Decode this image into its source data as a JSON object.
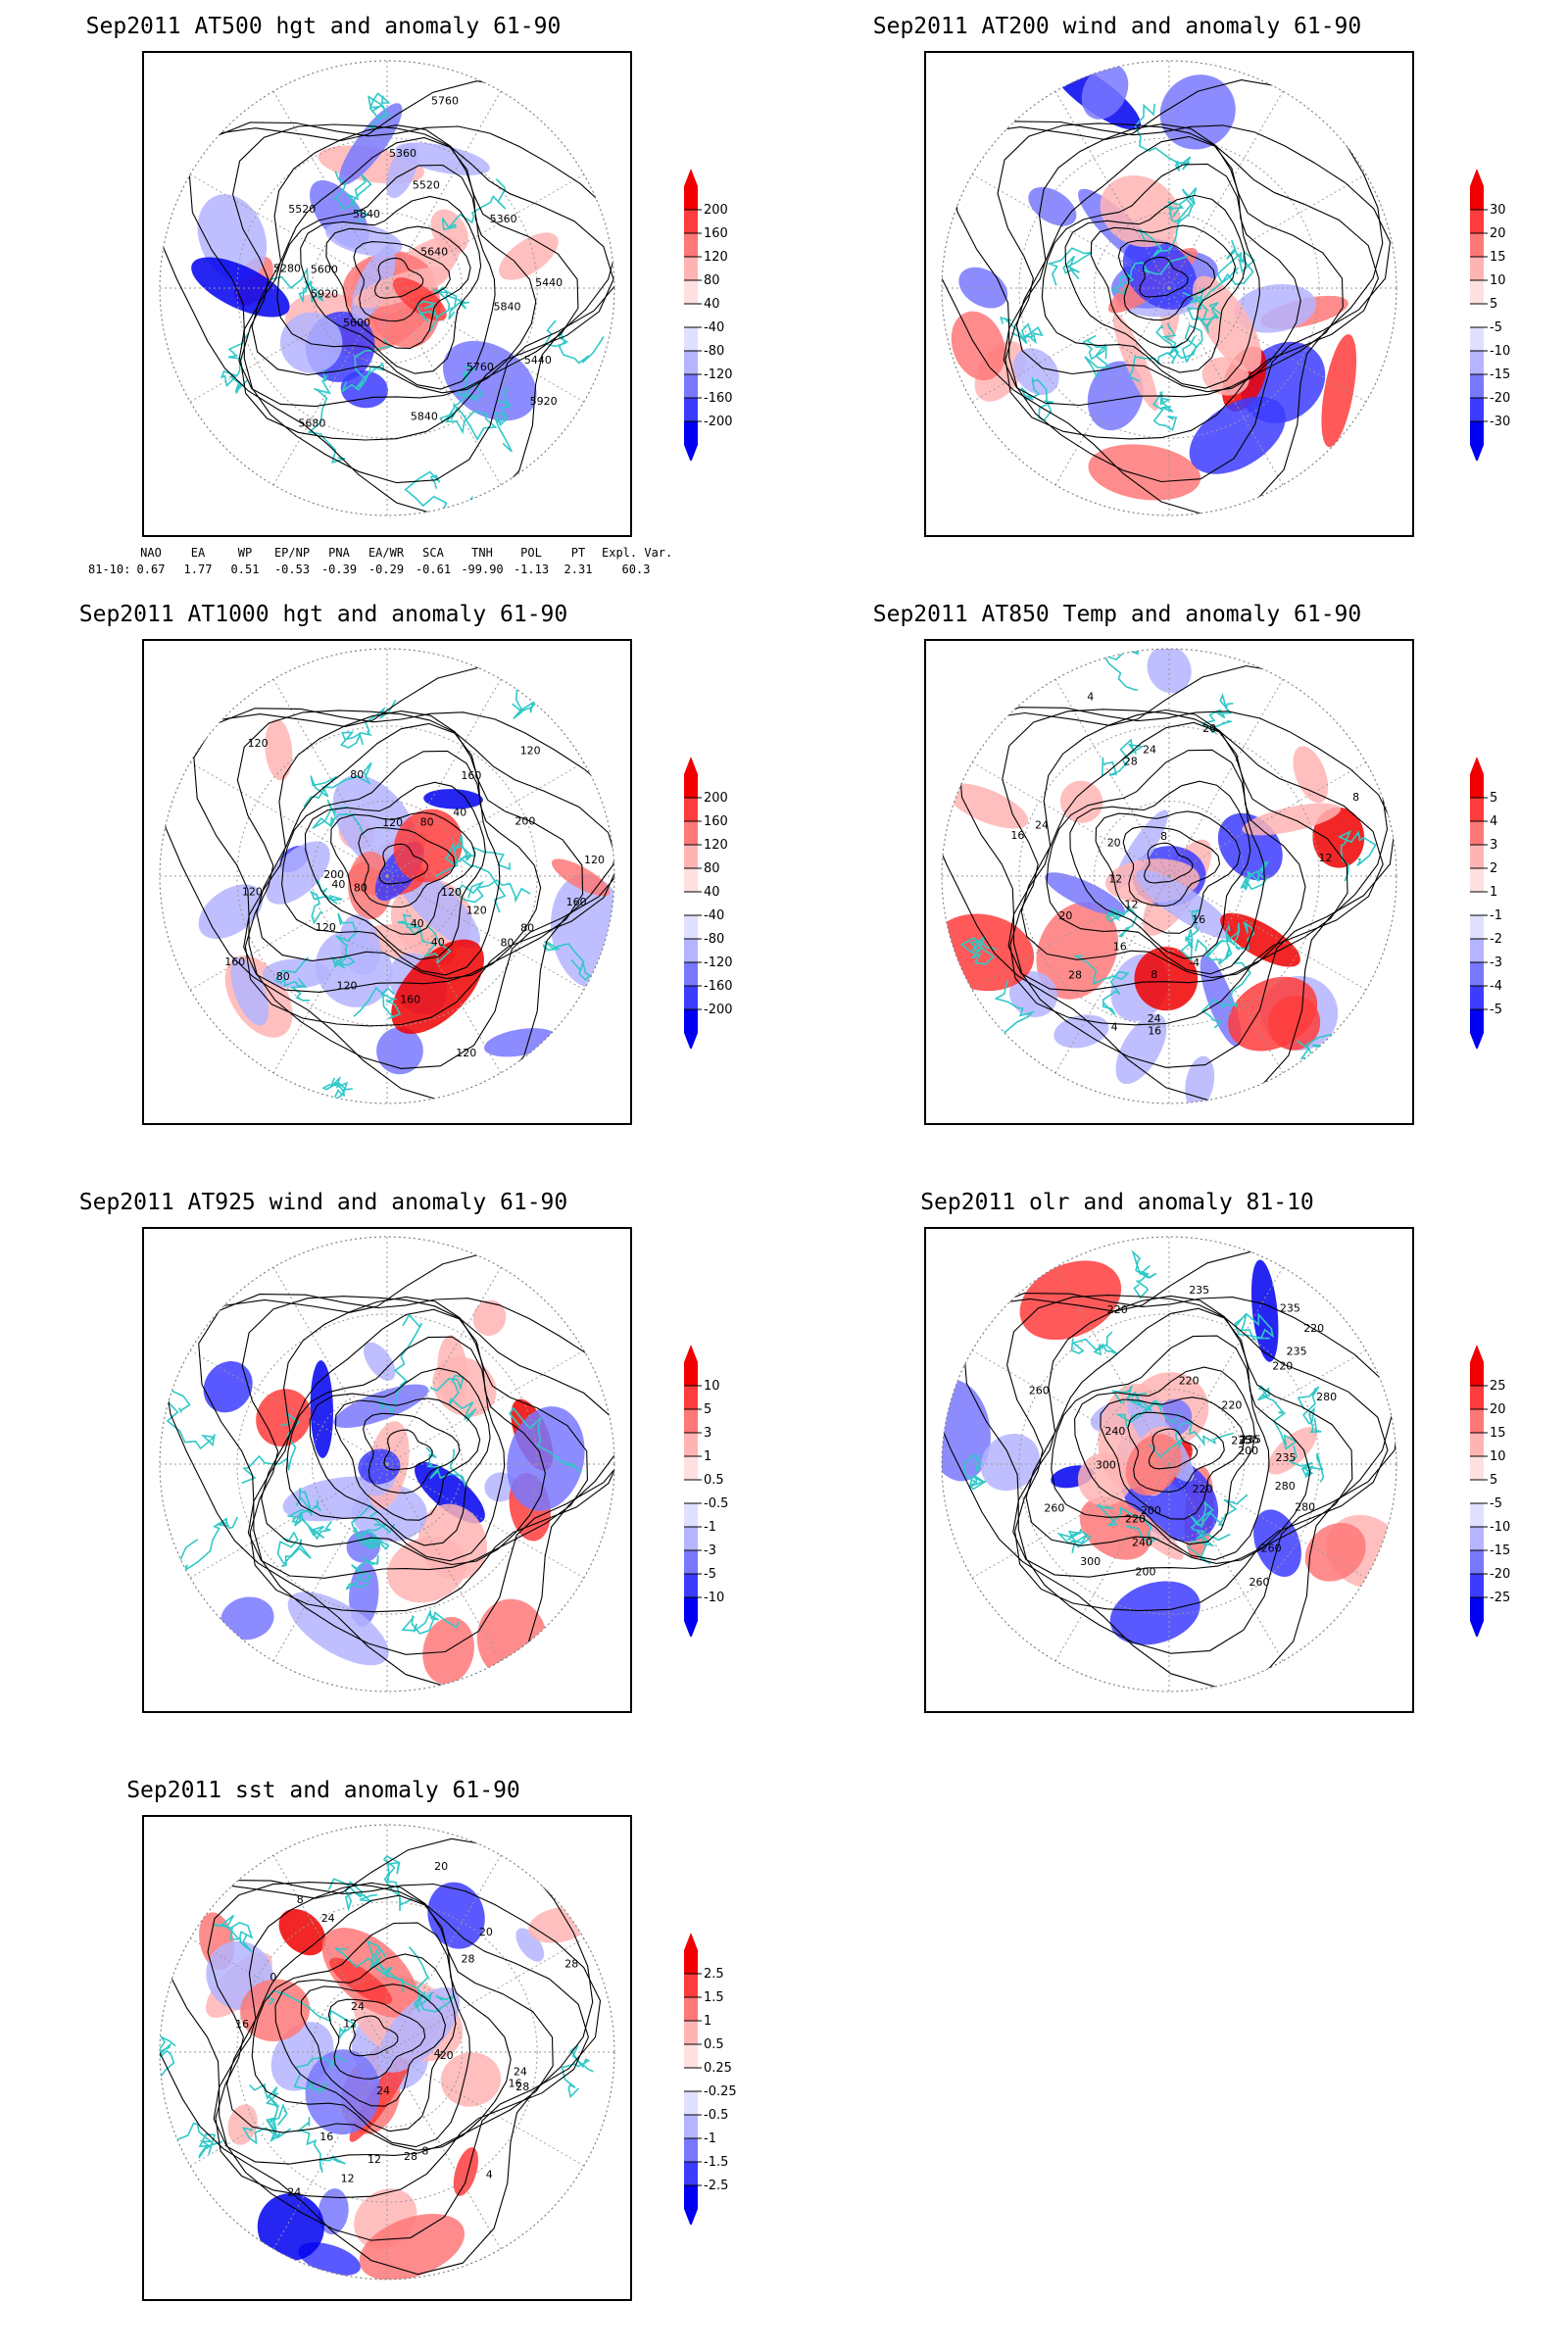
{
  "panels": [
    {
      "id": "p1",
      "title": "Sep2011 AT500 hgt and anomaly 61-90",
      "colorbar": [
        "200",
        "160",
        "120",
        "80",
        "40",
        "-40",
        "-80",
        "-120",
        "-160",
        "-200"
      ],
      "labels": [
        "5920",
        "5840",
        "5760",
        "5680",
        "5600",
        "5520",
        "5440",
        "5360",
        "5280",
        "5840",
        "5920",
        "5640",
        "5600",
        "5520",
        "5440",
        "5360",
        "5760",
        "5840"
      ]
    },
    {
      "id": "p2",
      "title": "Sep2011 AT200 wind and anomaly 61-90",
      "colorbar": [
        "30",
        "20",
        "15",
        "10",
        "5",
        "-5",
        "-10",
        "-15",
        "-20",
        "-30"
      ],
      "labels": []
    },
    {
      "id": "p3",
      "title": "Sep2011 AT1000 hgt and anomaly 61-90",
      "colorbar": [
        "200",
        "160",
        "120",
        "80",
        "40",
        "-40",
        "-80",
        "-120",
        "-160",
        "-200"
      ],
      "labels": [
        "80",
        "120",
        "120",
        "160",
        "200",
        "200",
        "120",
        "80",
        "40",
        "40",
        "80",
        "120",
        "160",
        "120",
        "80",
        "40",
        "160",
        "120",
        "120",
        "160",
        "120",
        "120",
        "80",
        "40",
        "80",
        "120"
      ]
    },
    {
      "id": "p4",
      "title": "Sep2011 AT850 Temp and anomaly 61-90",
      "colorbar": [
        "5",
        "4",
        "3",
        "2",
        "1",
        "-1",
        "-2",
        "-3",
        "-4",
        "-5"
      ],
      "labels": [
        "16",
        "12",
        "8",
        "4",
        "-4",
        "20",
        "24",
        "16",
        "8",
        "4",
        "12",
        "16",
        "24",
        "28",
        "20",
        "20",
        "24",
        "28",
        "16",
        "12",
        "8"
      ]
    },
    {
      "id": "p5",
      "title": "Sep2011 AT925 wind and anomaly 61-90",
      "colorbar": [
        "10",
        "5",
        "3",
        "1",
        "0.5",
        "-0.5",
        "-1",
        "-3",
        "-5",
        "-10"
      ],
      "labels": []
    },
    {
      "id": "p6",
      "title": "Sep2011 olr and anomaly 81-10",
      "colorbar": [
        "25",
        "20",
        "15",
        "10",
        "5",
        "-5",
        "-10",
        "-15",
        "-20",
        "-25"
      ],
      "labels": [
        "280",
        "220",
        "235",
        "260",
        "235",
        "200",
        "220",
        "235",
        "220",
        "260",
        "240",
        "200",
        "220",
        "235",
        "235",
        "280",
        "260",
        "220",
        "200",
        "300",
        "220",
        "235",
        "280",
        "300",
        "260",
        "235",
        "240",
        "220"
      ]
    },
    {
      "id": "p7",
      "title": "Sep2011 sst and anomaly 61-90",
      "colorbar": [
        "2.5",
        "1.5",
        "1",
        "0.5",
        "0.25",
        "-0.25",
        "-0.5",
        "-1",
        "-1.5",
        "-2.5"
      ],
      "labels": [
        "28",
        "24",
        "24",
        "20",
        "16",
        "12",
        "24",
        "20",
        "16",
        "12",
        "28",
        "8",
        "4",
        "0",
        "4",
        "8",
        "12",
        "16",
        "20",
        "24",
        "24",
        "28",
        "28"
      ]
    }
  ],
  "indices": {
    "headers": [
      "NAO",
      "EA",
      "WP",
      "EP/NP",
      "PNA",
      "EA/WR",
      "SCA",
      "TNH",
      "POL",
      "PT",
      "Expl. Var."
    ],
    "row_label": "81-10:",
    "values": [
      "0.67",
      "1.77",
      "0.51",
      "-0.53",
      "-0.39",
      "-0.29",
      "-0.61",
      "-99.90",
      "-1.13",
      "2.31",
      "60.3"
    ]
  },
  "colors": {
    "positive": [
      "#f00000",
      "#ff3c3c",
      "#ff7878",
      "#ffb4b4",
      "#ffe0e0"
    ],
    "negative": [
      "#e0e0ff",
      "#b4b4ff",
      "#7878ff",
      "#3c3cff",
      "#0000f0"
    ],
    "land": "#30c8c8"
  }
}
